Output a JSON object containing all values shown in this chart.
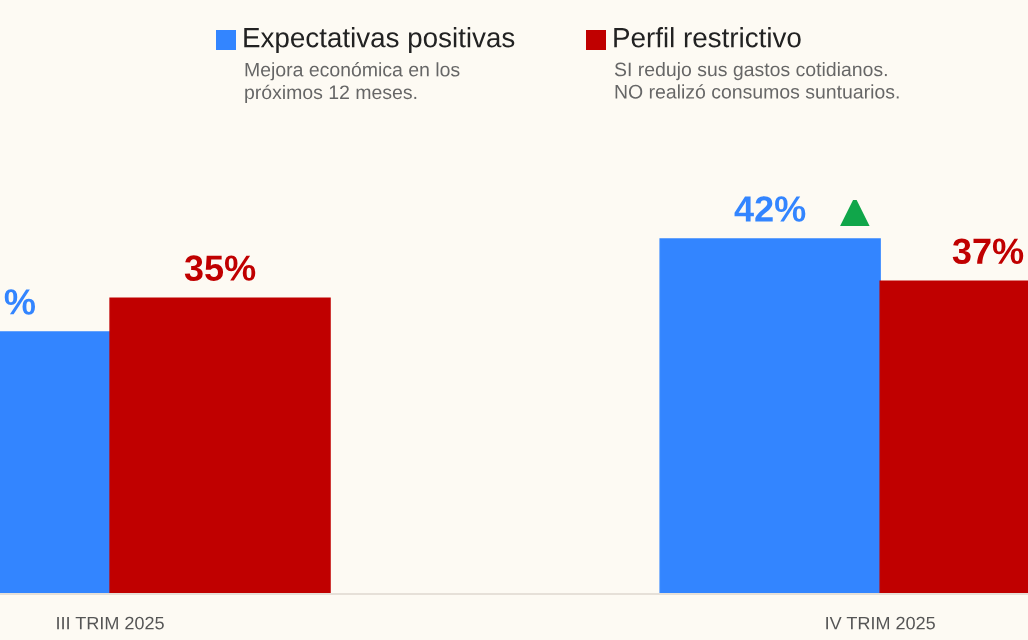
{
  "chart_data": {
    "type": "bar",
    "categories": [
      "III TRIM 2025",
      "IV TRIM 2025"
    ],
    "series": [
      {
        "name": "Expectativas positivas",
        "color": "#3385ff",
        "values": [
          31,
          42
        ],
        "value_labels": [
          "%",
          "42%"
        ]
      },
      {
        "name": "Perfil restrictivo",
        "color": "#c00000",
        "values": [
          35,
          37
        ],
        "value_labels": [
          "35%",
          "37%"
        ]
      }
    ],
    "annotations": [
      "Mejora económica en los\npróximos 12 meses.",
      "SI redujo sus gastos cotidianos.\nNO realizó consumos suntuarios."
    ],
    "legend": "top",
    "grid": false
  }
}
